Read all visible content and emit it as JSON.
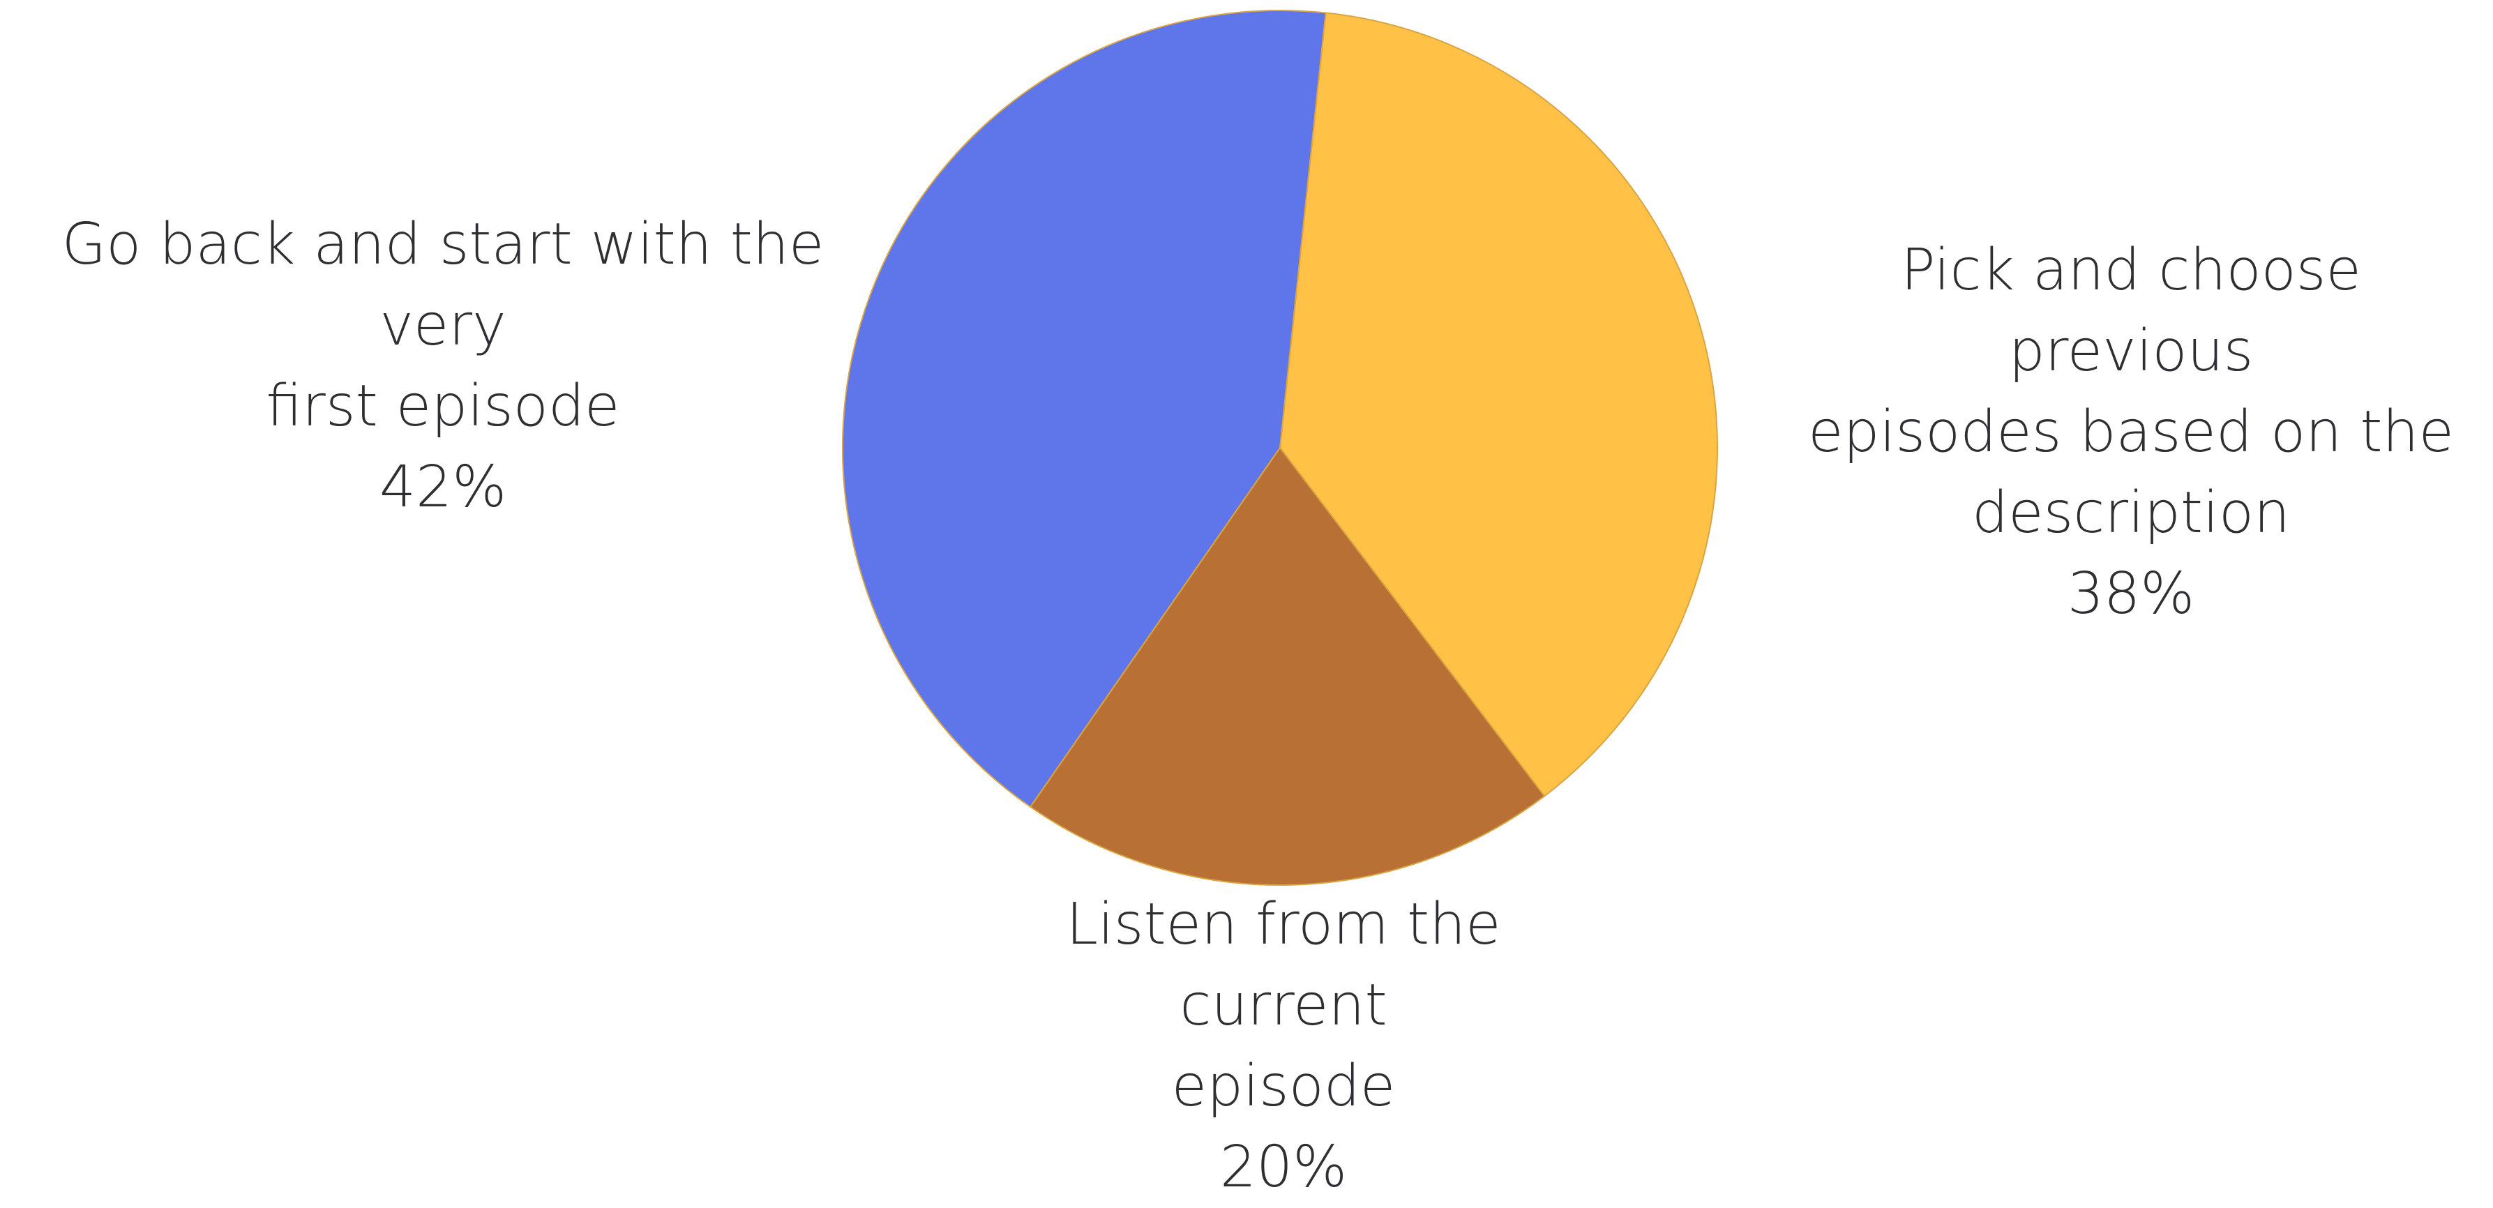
{
  "chart_data": {
    "type": "pie",
    "title": "",
    "slices": [
      {
        "label_lines": [
          "Pick and choose previous",
          "episodes based on the",
          "description"
        ],
        "value": 38,
        "percent_label": "38%",
        "color": "#ffc247"
      },
      {
        "label_lines": [
          "Listen from the current",
          "episode"
        ],
        "value": 20,
        "percent_label": "20%",
        "color": "#b87035"
      },
      {
        "label_lines": [
          "Go back and start with the very",
          "first episode"
        ],
        "value": 42,
        "percent_label": "42%",
        "color": "#5f76ea"
      }
    ],
    "start_angle_deg": 6,
    "direction": "clockwise",
    "legend": "none"
  }
}
